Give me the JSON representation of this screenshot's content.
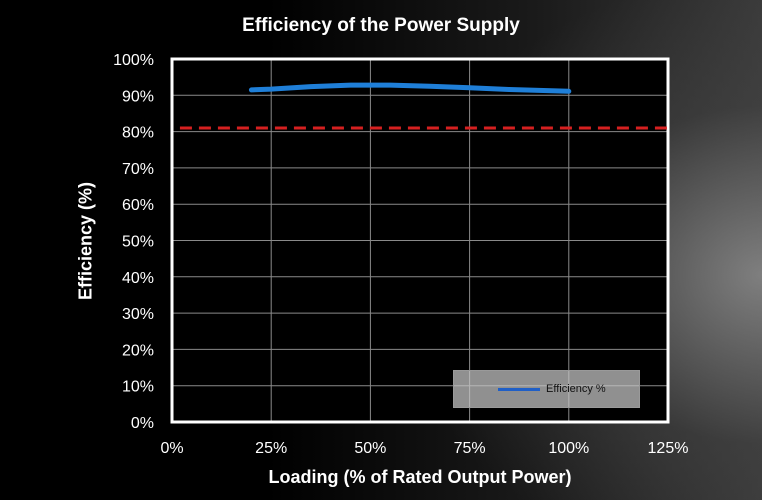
{
  "chart_data": {
    "type": "line",
    "title": "Efficiency of the Power Supply",
    "xlabel": "Loading (% of Rated Output Power)",
    "ylabel": "Efficiency (%)",
    "xlim": [
      0,
      125
    ],
    "ylim": [
      0,
      100
    ],
    "x_ticks": [
      "0%",
      "25%",
      "50%",
      "75%",
      "100%",
      "125%"
    ],
    "y_ticks": [
      "0%",
      "10%",
      "20%",
      "30%",
      "40%",
      "50%",
      "60%",
      "70%",
      "80%",
      "90%",
      "100%"
    ],
    "grid": true,
    "legend_position": "bottom-right",
    "series": [
      {
        "name": "Efficiency %",
        "color": "#1f7fd8",
        "x": [
          20,
          25,
          35,
          45,
          50,
          55,
          65,
          75,
          85,
          100
        ],
        "y": [
          91.5,
          91.7,
          92.4,
          92.8,
          92.8,
          92.8,
          92.5,
          92.1,
          91.6,
          91.1
        ]
      }
    ],
    "reference_line": {
      "y": 81,
      "x_range": [
        2,
        125
      ],
      "color": "#d62020",
      "style": "dashed"
    }
  }
}
